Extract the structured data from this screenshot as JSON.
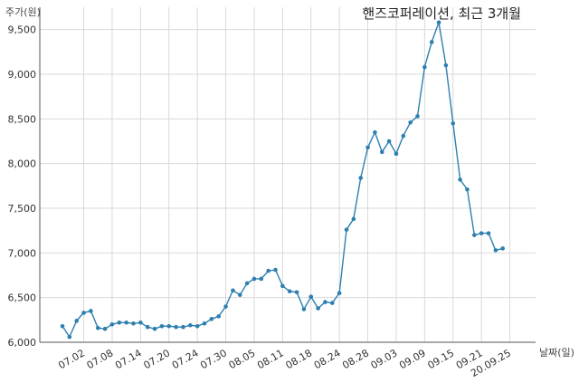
{
  "chart_data": {
    "type": "line",
    "title": "핸즈코퍼레이션, 최근 3개월",
    "ylabel": "주가(원)",
    "xlabel": "날짜(일)",
    "ylim": [
      6000,
      9750
    ],
    "yticks": [
      6000,
      6500,
      7000,
      7500,
      8000,
      8500,
      9000,
      9500
    ],
    "ytick_labels": [
      "6,000",
      "6,500",
      "7,000",
      "7,500",
      "8,000",
      "8,500",
      "9,000",
      "9,500"
    ],
    "xtick_labels": [
      "07.02",
      "07.08",
      "07.14",
      "07.20",
      "07.24",
      "07.30",
      "08.05",
      "08.11",
      "08.18",
      "08.24",
      "08.28",
      "09.03",
      "09.09",
      "09.15",
      "09.21",
      "20.09.25"
    ],
    "xtick_index": [
      3,
      7,
      11,
      15,
      19,
      23,
      27,
      31,
      35,
      39,
      43,
      47,
      51,
      55,
      59,
      63
    ],
    "grid": true,
    "color": "#2e7fb0",
    "series": [
      {
        "values": [
          6180,
          6060,
          6240,
          6330,
          6350,
          6160,
          6150,
          6200,
          6220,
          6220,
          6210,
          6220,
          6170,
          6150,
          6180,
          6180,
          6170,
          6170,
          6190,
          6180,
          6210,
          6260,
          6290,
          6400,
          6580,
          6530,
          6660,
          6710,
          6710,
          6800,
          6810,
          6630,
          6570,
          6560,
          6370,
          6510,
          6380,
          6450,
          6440,
          6550,
          7260,
          7380,
          7840,
          8180,
          8350,
          8130,
          8250,
          8110,
          8310,
          8460,
          8530,
          9080,
          9360,
          9580,
          9100,
          8450,
          7820,
          7710,
          7200,
          7220,
          7220,
          7030,
          7050
        ]
      }
    ]
  }
}
